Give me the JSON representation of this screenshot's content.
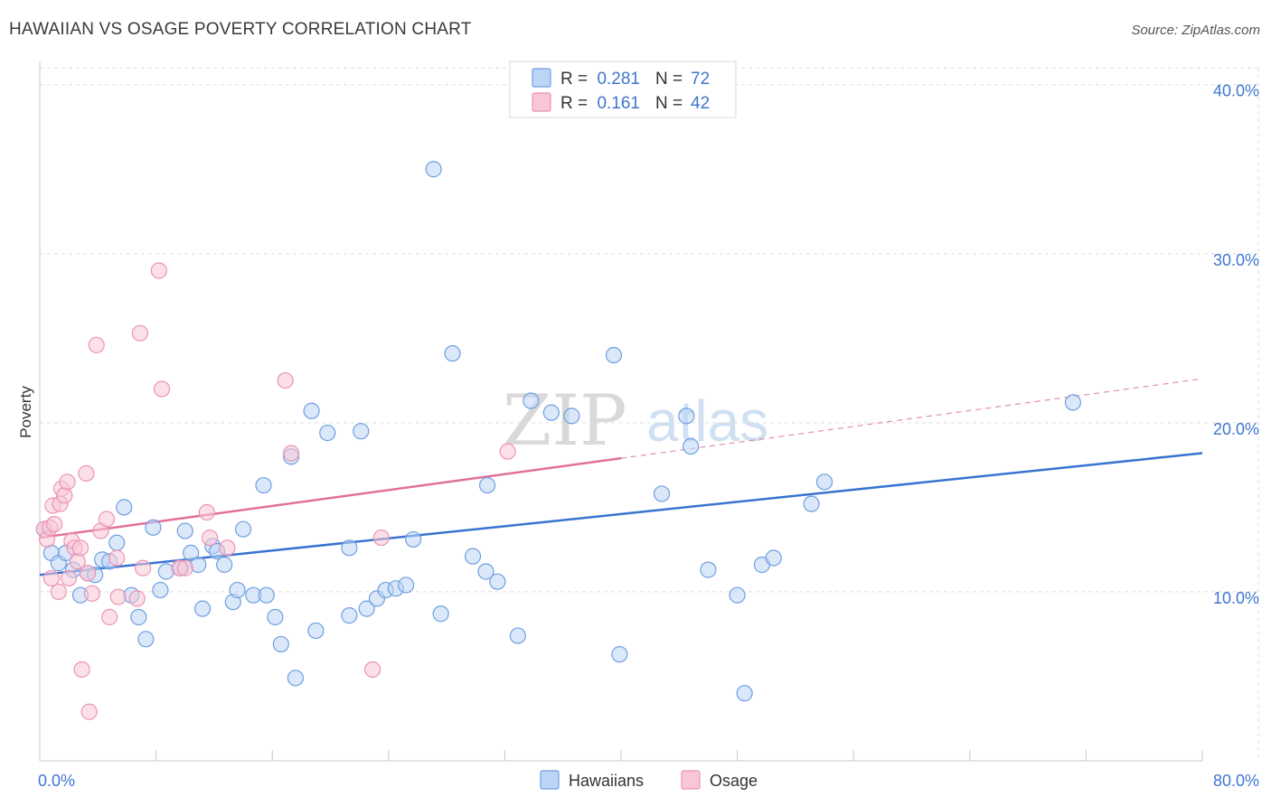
{
  "colors": {
    "blue": "#3874d0",
    "blue_fill": "#bcd5f6",
    "blue_stroke": "#6f9fe0",
    "pink": "#e0709a",
    "pink_fill": "#f8c6d5",
    "pink_stroke": "#ec94b2",
    "axis_label": "#3f76cf",
    "grid": "#dedede"
  },
  "chart_data": {
    "type": "scatter",
    "title": "HAWAIIAN VS OSAGE POVERTY CORRELATION CHART",
    "source": "Source: ZipAtlas.com",
    "xlabel": "",
    "ylabel": "Poverty",
    "xlim": [
      0,
      80
    ],
    "ylim": [
      0,
      41
    ],
    "x_tick_labels": [
      {
        "value": 0,
        "label": "0.0%"
      },
      {
        "value": 80,
        "label": "80.0%"
      }
    ],
    "y_tick_labels": [
      {
        "value": 10,
        "label": "10.0%"
      },
      {
        "value": 20,
        "label": "20.0%"
      },
      {
        "value": 30,
        "label": "30.0%"
      },
      {
        "value": 40,
        "label": "40.0%"
      }
    ],
    "x_minor_ticks": [
      0,
      8,
      16,
      24,
      32,
      40,
      48,
      56,
      64,
      72,
      80
    ],
    "legend": {
      "entries": [
        {
          "r_label": "R =",
          "r_value": "0.281",
          "n_label": "N =",
          "n_value": "72"
        },
        {
          "r_label": "R =",
          "r_value": "0.161",
          "n_label": "N =",
          "n_value": "42"
        }
      ]
    },
    "watermark": {
      "part1": "ZIP",
      "part2": "atlas"
    },
    "series": [
      {
        "name": "Hawaiians",
        "color": "#3874d0",
        "trend": {
          "x0": 0,
          "y0": 11.0,
          "x1": 80,
          "y1": 18.2,
          "dashed_from": null
        },
        "points": [
          [
            0.3,
            13.7
          ],
          [
            0.8,
            12.3
          ],
          [
            1.3,
            11.7
          ],
          [
            1.8,
            12.3
          ],
          [
            2.3,
            11.3
          ],
          [
            2.8,
            9.8
          ],
          [
            3.3,
            11.1
          ],
          [
            3.8,
            11.0
          ],
          [
            4.3,
            11.9
          ],
          [
            4.8,
            11.8
          ],
          [
            5.3,
            12.9
          ],
          [
            5.8,
            15.0
          ],
          [
            6.3,
            9.8
          ],
          [
            6.8,
            8.5
          ],
          [
            7.3,
            7.2
          ],
          [
            7.8,
            13.8
          ],
          [
            8.3,
            10.1
          ],
          [
            8.7,
            11.2
          ],
          [
            9.7,
            11.4
          ],
          [
            10.0,
            13.6
          ],
          [
            10.4,
            12.3
          ],
          [
            10.9,
            11.6
          ],
          [
            11.2,
            9.0
          ],
          [
            11.9,
            12.7
          ],
          [
            12.2,
            12.4
          ],
          [
            12.7,
            11.6
          ],
          [
            13.3,
            9.4
          ],
          [
            13.6,
            10.1
          ],
          [
            14.0,
            13.7
          ],
          [
            14.7,
            9.8
          ],
          [
            15.4,
            16.3
          ],
          [
            15.6,
            9.8
          ],
          [
            16.2,
            8.5
          ],
          [
            16.6,
            6.9
          ],
          [
            17.3,
            18.0
          ],
          [
            17.6,
            4.9
          ],
          [
            18.7,
            20.7
          ],
          [
            19.0,
            7.7
          ],
          [
            19.8,
            19.4
          ],
          [
            21.3,
            8.6
          ],
          [
            21.3,
            12.6
          ],
          [
            22.1,
            19.5
          ],
          [
            22.5,
            9.0
          ],
          [
            23.2,
            9.6
          ],
          [
            23.8,
            10.1
          ],
          [
            24.5,
            10.2
          ],
          [
            25.2,
            10.4
          ],
          [
            25.7,
            13.1
          ],
          [
            27.1,
            35.0
          ],
          [
            27.6,
            8.7
          ],
          [
            28.4,
            24.1
          ],
          [
            29.8,
            12.1
          ],
          [
            30.7,
            11.2
          ],
          [
            30.8,
            16.3
          ],
          [
            31.5,
            10.6
          ],
          [
            32.9,
            7.4
          ],
          [
            33.8,
            21.3
          ],
          [
            35.2,
            20.6
          ],
          [
            36.6,
            20.4
          ],
          [
            39.5,
            24.0
          ],
          [
            39.9,
            6.3
          ],
          [
            42.8,
            15.8
          ],
          [
            44.5,
            20.4
          ],
          [
            44.8,
            18.6
          ],
          [
            46.0,
            11.3
          ],
          [
            48.0,
            9.8
          ],
          [
            48.5,
            4.0
          ],
          [
            49.7,
            11.6
          ],
          [
            50.5,
            12.0
          ],
          [
            53.1,
            15.2
          ],
          [
            54.0,
            16.5
          ],
          [
            71.1,
            21.2
          ]
        ]
      },
      {
        "name": "Osage",
        "color": "#e0709a",
        "trend": {
          "x0": 0,
          "y0": 13.2,
          "x1": 80,
          "y1": 22.6,
          "dashed_from": 40
        },
        "points": [
          [
            0.3,
            13.7
          ],
          [
            0.5,
            13.1
          ],
          [
            0.7,
            13.8
          ],
          [
            0.8,
            10.8
          ],
          [
            0.9,
            15.1
          ],
          [
            1.0,
            14.0
          ],
          [
            1.3,
            10.0
          ],
          [
            1.4,
            15.2
          ],
          [
            1.5,
            16.1
          ],
          [
            1.7,
            15.7
          ],
          [
            1.9,
            16.5
          ],
          [
            2.0,
            10.8
          ],
          [
            2.2,
            13.0
          ],
          [
            2.4,
            12.6
          ],
          [
            2.6,
            11.8
          ],
          [
            2.8,
            12.6
          ],
          [
            2.9,
            5.4
          ],
          [
            3.2,
            17.0
          ],
          [
            3.3,
            11.1
          ],
          [
            3.4,
            2.9
          ],
          [
            3.6,
            9.9
          ],
          [
            3.9,
            24.6
          ],
          [
            4.2,
            13.6
          ],
          [
            4.6,
            14.3
          ],
          [
            4.8,
            8.5
          ],
          [
            5.3,
            12.0
          ],
          [
            5.4,
            9.7
          ],
          [
            6.7,
            9.6
          ],
          [
            6.9,
            25.3
          ],
          [
            7.1,
            11.4
          ],
          [
            8.2,
            29.0
          ],
          [
            8.4,
            22.0
          ],
          [
            9.6,
            11.4
          ],
          [
            10.0,
            11.4
          ],
          [
            11.5,
            14.7
          ],
          [
            11.7,
            13.2
          ],
          [
            12.9,
            12.6
          ],
          [
            16.9,
            22.5
          ],
          [
            17.3,
            18.2
          ],
          [
            22.9,
            5.4
          ],
          [
            23.5,
            13.2
          ],
          [
            32.2,
            18.3
          ]
        ]
      }
    ]
  }
}
